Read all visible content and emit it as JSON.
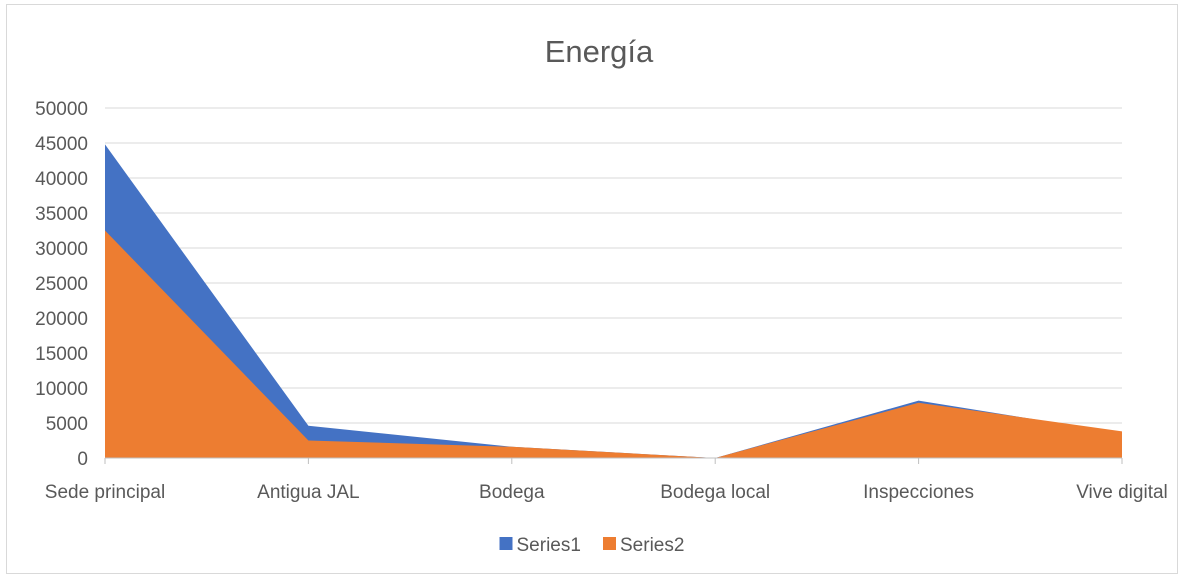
{
  "chart_data": {
    "type": "area",
    "title": "Energía",
    "categories": [
      "Sede principal",
      "Antigua JAL",
      "Bodega",
      "Bodega local",
      "Inspecciones",
      "Vive digital"
    ],
    "series": [
      {
        "name": "Series1",
        "values": [
          44800,
          4600,
          1600,
          0,
          8200,
          3500
        ],
        "color": "#4472C4"
      },
      {
        "name": "Series2",
        "values": [
          32500,
          2500,
          1600,
          0,
          7900,
          3800
        ],
        "color": "#ED7D31"
      }
    ],
    "ylim": [
      0,
      50000
    ],
    "yticks": [
      "0",
      "5000",
      "10000",
      "15000",
      "20000",
      "25000",
      "30000",
      "35000",
      "40000",
      "45000",
      "50000"
    ],
    "grid": true,
    "legend_position": "bottom"
  }
}
